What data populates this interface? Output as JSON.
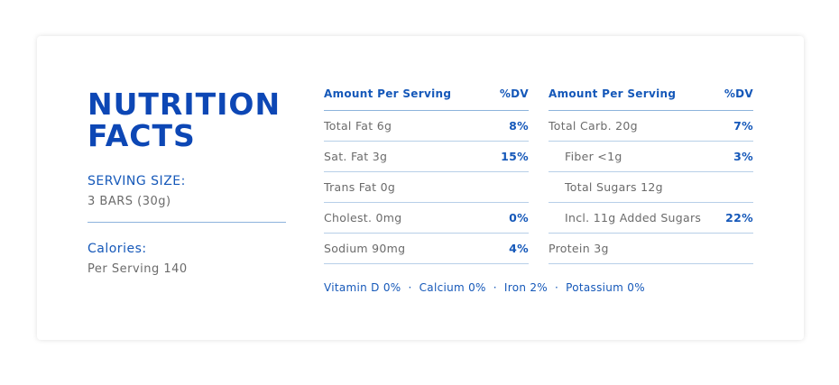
{
  "title_line1": "NUTRITION",
  "title_line2": "FACTS",
  "serving": {
    "label": "SERVING SIZE:",
    "value": "3 BARS (30g)"
  },
  "calories": {
    "label": "Calories:",
    "value": "Per Serving 140"
  },
  "table_left": {
    "header_amount": "Amount Per Serving",
    "header_dv": "%DV",
    "rows": [
      {
        "name": "Total Fat 6g",
        "dv": "8%"
      },
      {
        "name": "Sat. Fat 3g",
        "dv": "15%"
      },
      {
        "name": "Trans Fat 0g",
        "dv": ""
      },
      {
        "name": "Cholest. 0mg",
        "dv": "0%"
      },
      {
        "name": "Sodium 90mg",
        "dv": "4%"
      }
    ]
  },
  "table_right": {
    "header_amount": "Amount Per Serving",
    "header_dv": "%DV",
    "rows": [
      {
        "name": "Total Carb. 20g",
        "dv": "7%"
      },
      {
        "name": "Fiber <1g",
        "dv": "3%"
      },
      {
        "name": "Total Sugars 12g",
        "dv": ""
      },
      {
        "name": "Incl. 11g Added Sugars",
        "dv": "22%"
      },
      {
        "name": "Protein 3g",
        "dv": ""
      }
    ]
  },
  "vitamins": [
    "Vitamin D 0%",
    "Calcium 0%",
    "Iron 2%",
    "Potassium 0%"
  ],
  "colors": {
    "primary": "#1558b9",
    "title": "#0d47b5",
    "text": "#6b6b6b",
    "rule": "#8db3dc"
  }
}
